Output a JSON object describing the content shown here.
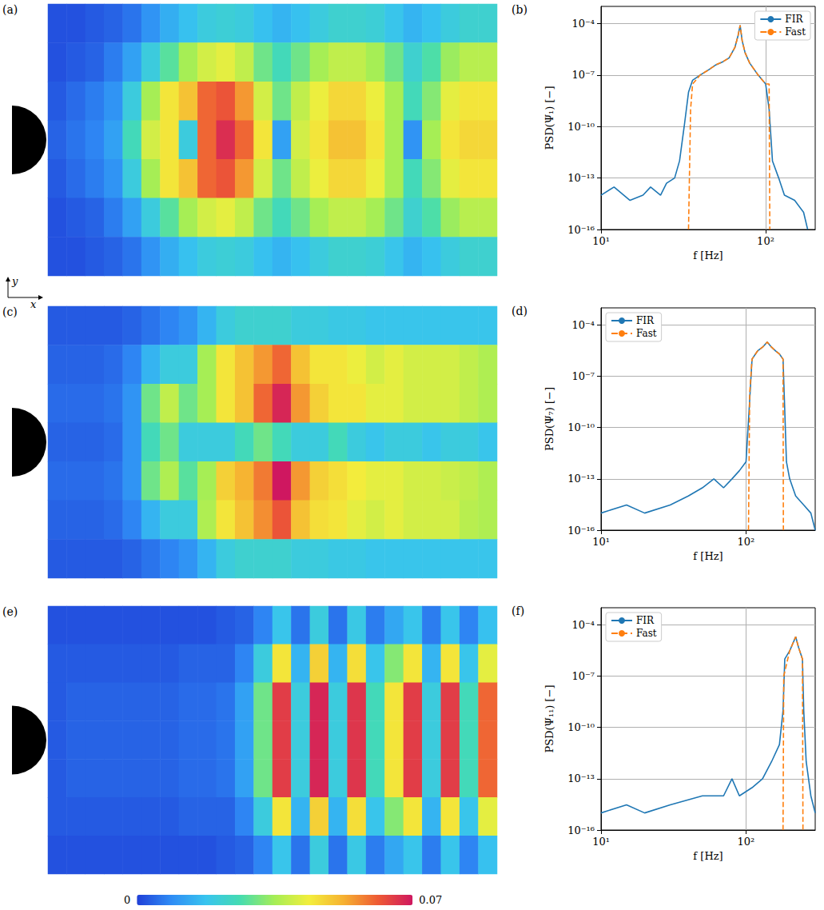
{
  "chart_data": [
    {
      "type": "heatmap",
      "title": "(a)",
      "annotations": [
        {
          "text": "y"
        },
        {
          "text": "x"
        }
      ],
      "cells": [
        [
          0.002,
          0.002,
          0.003,
          0.004,
          0.006,
          0.01,
          0.014,
          0.017,
          0.02,
          0.021,
          0.02,
          0.017,
          0.015,
          0.017,
          0.02,
          0.022,
          0.022,
          0.021,
          0.018,
          0.015,
          0.017,
          0.02,
          0.022,
          0.022
        ],
        [
          0.002,
          0.003,
          0.004,
          0.007,
          0.012,
          0.02,
          0.028,
          0.035,
          0.04,
          0.042,
          0.038,
          0.03,
          0.025,
          0.03,
          0.035,
          0.038,
          0.038,
          0.035,
          0.03,
          0.022,
          0.027,
          0.034,
          0.037,
          0.037
        ],
        [
          0.003,
          0.005,
          0.007,
          0.01,
          0.02,
          0.035,
          0.045,
          0.05,
          0.06,
          0.062,
          0.055,
          0.04,
          0.03,
          0.038,
          0.043,
          0.047,
          0.047,
          0.043,
          0.035,
          0.025,
          0.032,
          0.042,
          0.045,
          0.045
        ],
        [
          0.004,
          0.006,
          0.008,
          0.012,
          0.025,
          0.04,
          0.045,
          0.02,
          0.06,
          0.067,
          0.06,
          0.045,
          0.012,
          0.04,
          0.045,
          0.05,
          0.05,
          0.045,
          0.035,
          0.01,
          0.035,
          0.045,
          0.047,
          0.047
        ],
        [
          0.003,
          0.005,
          0.007,
          0.01,
          0.02,
          0.035,
          0.045,
          0.05,
          0.06,
          0.062,
          0.055,
          0.04,
          0.03,
          0.038,
          0.043,
          0.047,
          0.047,
          0.043,
          0.035,
          0.025,
          0.032,
          0.042,
          0.045,
          0.045
        ],
        [
          0.002,
          0.003,
          0.004,
          0.007,
          0.012,
          0.02,
          0.028,
          0.035,
          0.04,
          0.042,
          0.038,
          0.03,
          0.025,
          0.03,
          0.035,
          0.038,
          0.038,
          0.035,
          0.03,
          0.022,
          0.027,
          0.034,
          0.037,
          0.037
        ],
        [
          0.002,
          0.002,
          0.003,
          0.004,
          0.006,
          0.01,
          0.014,
          0.017,
          0.02,
          0.021,
          0.02,
          0.017,
          0.015,
          0.017,
          0.02,
          0.022,
          0.022,
          0.021,
          0.018,
          0.015,
          0.017,
          0.02,
          0.022,
          0.022
        ]
      ]
    },
    {
      "type": "line",
      "title": "(b)",
      "xlabel": "f [Hz]",
      "ylabel": "PSD(Ψ₁) [−]",
      "log": true,
      "grid": true,
      "legend": "upper right",
      "xlim": [
        10,
        200
      ],
      "ylim": [
        1e-16,
        0.001
      ],
      "xticks": [
        {
          "value": 10,
          "label": "10¹"
        },
        {
          "value": 100,
          "label": "10²"
        }
      ],
      "yticks": [
        {
          "value": 1e-16,
          "label": "10⁻¹⁶"
        },
        {
          "value": 1e-13,
          "label": "10⁻¹³"
        },
        {
          "value": 1e-10,
          "label": "10⁻¹⁰"
        },
        {
          "value": 1e-07,
          "label": "10⁻⁷"
        },
        {
          "value": 0.0001,
          "label": "10⁻⁴"
        }
      ],
      "series": [
        {
          "name": "FIR",
          "color": "#1f77b4",
          "line_style": "solid",
          "x": [
            10,
            12,
            15,
            18,
            20,
            23,
            25,
            28,
            30,
            32,
            34,
            36,
            40,
            45,
            50,
            55,
            60,
            65,
            68,
            70,
            72,
            75,
            80,
            90,
            100,
            105,
            110,
            120,
            130,
            150,
            170,
            180
          ],
          "values": [
            1e-14,
            3e-14,
            5e-15,
            1e-14,
            3e-14,
            1e-14,
            5e-14,
            1e-13,
            1e-12,
            1e-10,
            1e-08,
            5e-08,
            1e-07,
            2e-07,
            4e-07,
            6e-07,
            1e-06,
            4e-06,
            2e-05,
            8e-05,
            1e-05,
            2e-06,
            5e-07,
            1e-07,
            3e-08,
            1e-09,
            1e-12,
            1e-13,
            1e-14,
            5e-15,
            1e-15,
            1e-16
          ]
        },
        {
          "name": "Fast",
          "color": "#ff7f0e",
          "line_style": "dashed",
          "x": [
            34,
            35,
            36,
            40,
            45,
            50,
            55,
            60,
            65,
            68,
            70,
            72,
            75,
            80,
            90,
            100,
            105,
            106
          ],
          "values": [
            1e-16,
            1e-09,
            3e-08,
            1e-07,
            2e-07,
            4e-07,
            6e-07,
            1e-06,
            4e-06,
            2e-05,
            8e-05,
            1e-05,
            2e-06,
            5e-07,
            1e-07,
            3e-08,
            3e-08,
            1e-16
          ]
        }
      ]
    },
    {
      "type": "heatmap",
      "title": "(c)",
      "cells": [
        [
          0.003,
          0.003,
          0.003,
          0.003,
          0.004,
          0.006,
          0.008,
          0.01,
          0.015,
          0.02,
          0.022,
          0.022,
          0.022,
          0.02,
          0.02,
          0.019,
          0.019,
          0.018,
          0.018,
          0.018,
          0.018,
          0.018,
          0.018,
          0.018
        ],
        [
          0.004,
          0.004,
          0.004,
          0.005,
          0.008,
          0.015,
          0.02,
          0.02,
          0.035,
          0.045,
          0.05,
          0.055,
          0.06,
          0.05,
          0.045,
          0.045,
          0.043,
          0.04,
          0.042,
          0.04,
          0.04,
          0.04,
          0.038,
          0.036
        ],
        [
          0.005,
          0.005,
          0.005,
          0.006,
          0.01,
          0.03,
          0.038,
          0.03,
          0.035,
          0.045,
          0.05,
          0.06,
          0.068,
          0.055,
          0.048,
          0.045,
          0.045,
          0.042,
          0.042,
          0.04,
          0.04,
          0.04,
          0.038,
          0.036
        ],
        [
          0.004,
          0.004,
          0.004,
          0.005,
          0.01,
          0.025,
          0.03,
          0.02,
          0.02,
          0.02,
          0.025,
          0.03,
          0.025,
          0.02,
          0.02,
          0.025,
          0.02,
          0.018,
          0.02,
          0.02,
          0.018,
          0.02,
          0.02,
          0.018
        ],
        [
          0.005,
          0.005,
          0.005,
          0.006,
          0.01,
          0.03,
          0.036,
          0.028,
          0.035,
          0.048,
          0.052,
          0.058,
          0.07,
          0.055,
          0.048,
          0.046,
          0.044,
          0.042,
          0.042,
          0.04,
          0.04,
          0.039,
          0.038,
          0.036
        ],
        [
          0.004,
          0.004,
          0.004,
          0.005,
          0.008,
          0.015,
          0.02,
          0.02,
          0.036,
          0.045,
          0.05,
          0.056,
          0.062,
          0.05,
          0.046,
          0.045,
          0.042,
          0.04,
          0.042,
          0.04,
          0.04,
          0.04,
          0.037,
          0.036
        ],
        [
          0.003,
          0.003,
          0.003,
          0.003,
          0.004,
          0.006,
          0.008,
          0.01,
          0.015,
          0.02,
          0.022,
          0.022,
          0.022,
          0.02,
          0.02,
          0.019,
          0.019,
          0.018,
          0.018,
          0.018,
          0.018,
          0.018,
          0.018,
          0.018
        ]
      ]
    },
    {
      "type": "line",
      "title": "(d)",
      "xlabel": "f [Hz]",
      "ylabel": "PSD(Ψ₇) [−]",
      "log": true,
      "grid": true,
      "legend": "upper left",
      "xlim": [
        10,
        300
      ],
      "ylim": [
        1e-16,
        0.001
      ],
      "xticks": [
        {
          "value": 10,
          "label": "10¹"
        },
        {
          "value": 100,
          "label": "10²"
        }
      ],
      "yticks": [
        {
          "value": 1e-16,
          "label": "10⁻¹⁶"
        },
        {
          "value": 1e-13,
          "label": "10⁻¹³"
        },
        {
          "value": 1e-10,
          "label": "10⁻¹⁰"
        },
        {
          "value": 1e-07,
          "label": "10⁻⁷"
        },
        {
          "value": 0.0001,
          "label": "10⁻⁴"
        }
      ],
      "series": [
        {
          "name": "FIR",
          "color": "#1f77b4",
          "line_style": "solid",
          "x": [
            10,
            15,
            20,
            30,
            40,
            50,
            60,
            70,
            80,
            90,
            100,
            105,
            110,
            120,
            130,
            140,
            150,
            160,
            170,
            180,
            185,
            190,
            200,
            220,
            250,
            280,
            300
          ],
          "values": [
            1e-15,
            3e-15,
            1e-15,
            3e-15,
            1e-14,
            3e-14,
            1e-13,
            3e-14,
            1e-13,
            3e-13,
            1e-12,
            1e-09,
            1e-06,
            3e-06,
            5e-06,
            1e-05,
            5e-06,
            3e-06,
            2e-06,
            1e-06,
            1e-09,
            1e-12,
            1e-13,
            1e-14,
            3e-15,
            1e-15,
            1e-16
          ]
        },
        {
          "name": "Fast",
          "color": "#ff7f0e",
          "line_style": "dashed",
          "x": [
            104,
            106,
            110,
            120,
            130,
            140,
            150,
            160,
            170,
            180,
            181
          ],
          "values": [
            1e-16,
            1e-08,
            1e-06,
            3e-06,
            5e-06,
            1e-05,
            5e-06,
            3e-06,
            2e-06,
            1e-06,
            1e-16
          ]
        }
      ]
    },
    {
      "type": "heatmap",
      "title": "(e)",
      "cells": [
        [
          0.002,
          0.002,
          0.002,
          0.002,
          0.002,
          0.002,
          0.002,
          0.002,
          0.002,
          0.003,
          0.004,
          0.008,
          0.018,
          0.006,
          0.02,
          0.006,
          0.019,
          0.007,
          0.013,
          0.018,
          0.007,
          0.018,
          0.008,
          0.017
        ],
        [
          0.003,
          0.003,
          0.003,
          0.003,
          0.003,
          0.003,
          0.003,
          0.004,
          0.004,
          0.004,
          0.008,
          0.02,
          0.045,
          0.015,
          0.048,
          0.015,
          0.046,
          0.018,
          0.032,
          0.045,
          0.015,
          0.045,
          0.018,
          0.042
        ],
        [
          0.003,
          0.004,
          0.004,
          0.004,
          0.004,
          0.004,
          0.004,
          0.005,
          0.005,
          0.006,
          0.012,
          0.03,
          0.065,
          0.02,
          0.068,
          0.02,
          0.066,
          0.025,
          0.045,
          0.065,
          0.02,
          0.065,
          0.025,
          0.06
        ],
        [
          0.003,
          0.004,
          0.004,
          0.004,
          0.004,
          0.004,
          0.004,
          0.005,
          0.005,
          0.006,
          0.012,
          0.03,
          0.065,
          0.02,
          0.068,
          0.02,
          0.066,
          0.025,
          0.045,
          0.065,
          0.02,
          0.065,
          0.025,
          0.06
        ],
        [
          0.003,
          0.004,
          0.004,
          0.004,
          0.004,
          0.004,
          0.004,
          0.005,
          0.005,
          0.006,
          0.012,
          0.03,
          0.065,
          0.02,
          0.068,
          0.02,
          0.066,
          0.025,
          0.045,
          0.065,
          0.02,
          0.065,
          0.025,
          0.06
        ],
        [
          0.003,
          0.003,
          0.003,
          0.003,
          0.003,
          0.003,
          0.003,
          0.004,
          0.004,
          0.004,
          0.008,
          0.02,
          0.045,
          0.015,
          0.048,
          0.015,
          0.046,
          0.018,
          0.032,
          0.045,
          0.015,
          0.045,
          0.018,
          0.042
        ],
        [
          0.002,
          0.002,
          0.002,
          0.002,
          0.002,
          0.002,
          0.002,
          0.002,
          0.002,
          0.003,
          0.004,
          0.008,
          0.018,
          0.006,
          0.02,
          0.006,
          0.019,
          0.007,
          0.013,
          0.018,
          0.007,
          0.018,
          0.008,
          0.017
        ]
      ]
    },
    {
      "type": "line",
      "title": "(f)",
      "xlabel": "f [Hz]",
      "ylabel": "PSD(Ψ₁₁) [−]",
      "log": true,
      "grid": true,
      "legend": "upper left",
      "xlim": [
        10,
        300
      ],
      "ylim": [
        1e-16,
        0.001
      ],
      "xticks": [
        {
          "value": 10,
          "label": "10¹"
        },
        {
          "value": 100,
          "label": "10²"
        }
      ],
      "yticks": [
        {
          "value": 1e-16,
          "label": "10⁻¹⁶"
        },
        {
          "value": 1e-13,
          "label": "10⁻¹³"
        },
        {
          "value": 1e-10,
          "label": "10⁻¹⁰"
        },
        {
          "value": 1e-07,
          "label": "10⁻⁷"
        },
        {
          "value": 0.0001,
          "label": "10⁻⁴"
        }
      ],
      "series": [
        {
          "name": "FIR",
          "color": "#1f77b4",
          "line_style": "solid",
          "x": [
            10,
            15,
            20,
            30,
            50,
            70,
            80,
            90,
            110,
            130,
            150,
            170,
            180,
            185,
            200,
            220,
            230,
            245,
            250,
            260,
            280,
            300
          ],
          "values": [
            1e-15,
            3e-15,
            1e-15,
            3e-15,
            1e-14,
            1e-14,
            1e-13,
            1e-14,
            3e-14,
            1e-13,
            1e-12,
            1e-11,
            1e-09,
            1e-06,
            3e-06,
            2e-05,
            5e-06,
            1e-06,
            1e-09,
            1e-12,
            1e-14,
            1e-15
          ]
        },
        {
          "name": "Fast",
          "color": "#ff7f0e",
          "line_style": "dashed",
          "x": [
            180,
            182,
            200,
            220,
            230,
            245,
            247
          ],
          "values": [
            1e-16,
            1e-07,
            3e-06,
            2e-05,
            5e-06,
            1e-06,
            1e-16
          ]
        }
      ]
    },
    {
      "type": "colorbar",
      "range": [
        0,
        0.07
      ],
      "ticks": [
        0,
        0.07
      ]
    }
  ]
}
